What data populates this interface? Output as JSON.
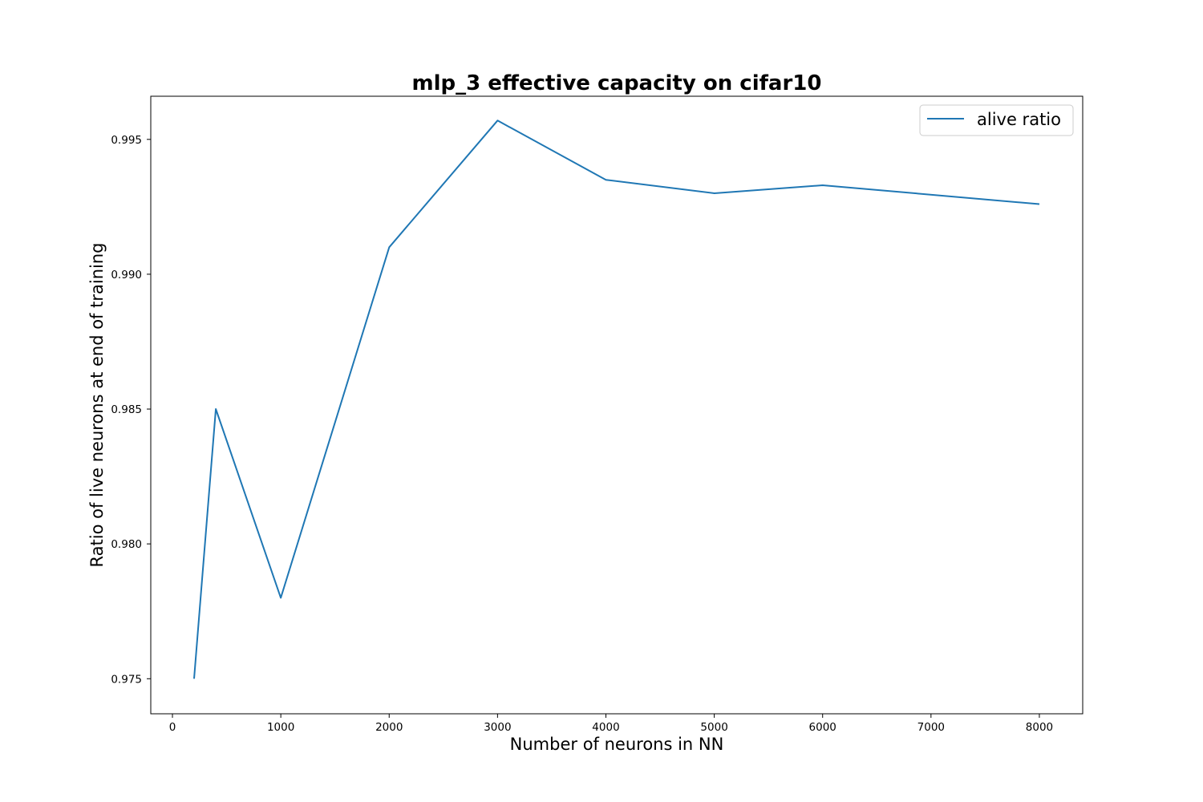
{
  "chart_data": {
    "type": "line",
    "title": "mlp_3 effective capacity on cifar10",
    "xlabel": "Number of neurons in NN",
    "ylabel": "Ratio of live neurons at end of training",
    "xlim": [
      -200,
      8400
    ],
    "ylim": [
      0.9737,
      0.9966
    ],
    "xticks": [
      0,
      1000,
      2000,
      3000,
      4000,
      5000,
      6000,
      7000,
      8000
    ],
    "xtick_labels": [
      "0",
      "1000",
      "2000",
      "3000",
      "4000",
      "5000",
      "6000",
      "7000",
      "8000"
    ],
    "yticks": [
      0.975,
      0.98,
      0.985,
      0.99,
      0.995
    ],
    "ytick_labels": [
      "0.975",
      "0.980",
      "0.985",
      "0.990",
      "0.995"
    ],
    "grid": false,
    "legend_position": "top-right",
    "series": [
      {
        "name": "alive ratio",
        "color": "#1f77b4",
        "x": [
          200,
          400,
          1000,
          2000,
          3000,
          4000,
          5000,
          6000,
          8000
        ],
        "y": [
          0.975,
          0.985,
          0.978,
          0.991,
          0.9957,
          0.9935,
          0.993,
          0.9933,
          0.9926
        ]
      }
    ]
  }
}
